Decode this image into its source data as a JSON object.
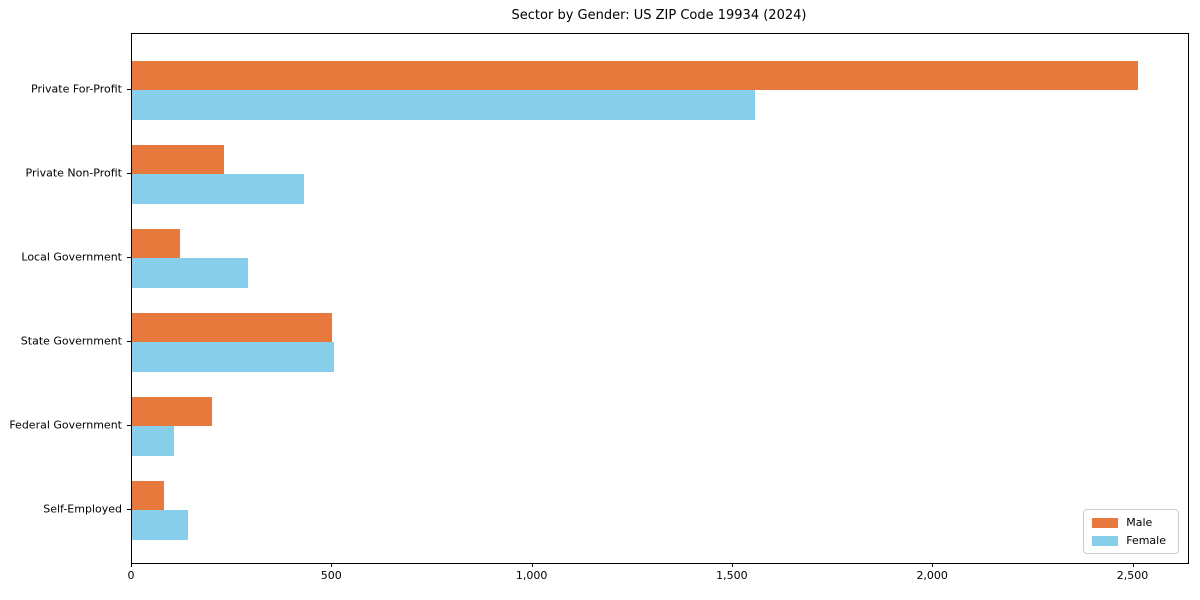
{
  "title": "Sector by Gender: US ZIP Code 19934 (2024)",
  "colors": {
    "male": "#e8793c",
    "female": "#87ceeb",
    "axis": "#000000",
    "background": "#ffffff",
    "legend_border": "#cccccc"
  },
  "chart_data": {
    "type": "bar",
    "orientation": "horizontal",
    "title": "Sector by Gender: US ZIP Code 19934 (2024)",
    "categories": [
      "Private For-Profit",
      "Private Non-Profit",
      "Local Government",
      "State Government",
      "Federal Government",
      "Self-Employed"
    ],
    "series": [
      {
        "name": "Male",
        "color": "#e8793c",
        "values": [
          2510,
          230,
          120,
          500,
          200,
          80
        ]
      },
      {
        "name": "Female",
        "color": "#87ceeb",
        "values": [
          1555,
          430,
          290,
          505,
          105,
          140
        ]
      }
    ],
    "xlabel": "",
    "ylabel": "",
    "xlim": [
      0,
      2636
    ],
    "x_ticks": [
      0,
      500,
      1000,
      1500,
      2000,
      2500
    ],
    "x_tick_labels": [
      "0",
      "500",
      "1,000",
      "1,500",
      "2,000",
      "2,500"
    ],
    "grid": false,
    "legend_position": "lower right"
  }
}
